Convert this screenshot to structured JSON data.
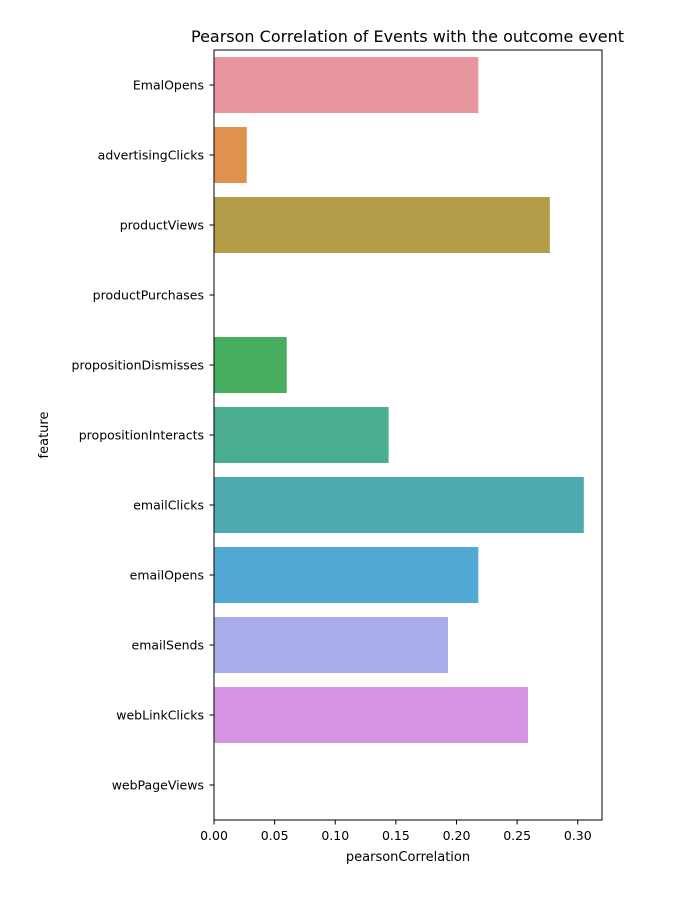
{
  "chart_data": {
    "type": "bar",
    "orientation": "horizontal",
    "title": "Pearson Correlation of Events with the outcome event",
    "xlabel": "pearsonCorrelation",
    "ylabel": "feature",
    "xlim": [
      0.0,
      0.32
    ],
    "xticks": [
      "0.00",
      "0.05",
      "0.10",
      "0.15",
      "0.20",
      "0.25",
      "0.30"
    ],
    "grid": false,
    "categories": [
      "EmalOpens",
      "advertisingClicks",
      "productViews",
      "productPurchases",
      "propositionDismisses",
      "propositionInteracts",
      "emailClicks",
      "emailOpens",
      "emailSends",
      "webLinkClicks",
      "webPageViews"
    ],
    "values": [
      0.218,
      0.027,
      0.277,
      0.0,
      0.06,
      0.144,
      0.305,
      0.218,
      0.193,
      0.259,
      0.0
    ],
    "colors": [
      "#e8959f",
      "#de924e",
      "#b39c48",
      "#98a93f",
      "#46ae5e",
      "#4aad8f",
      "#4eaab1",
      "#52a9d5",
      "#a8ade9",
      "#d593e4",
      "#e891c4"
    ]
  }
}
